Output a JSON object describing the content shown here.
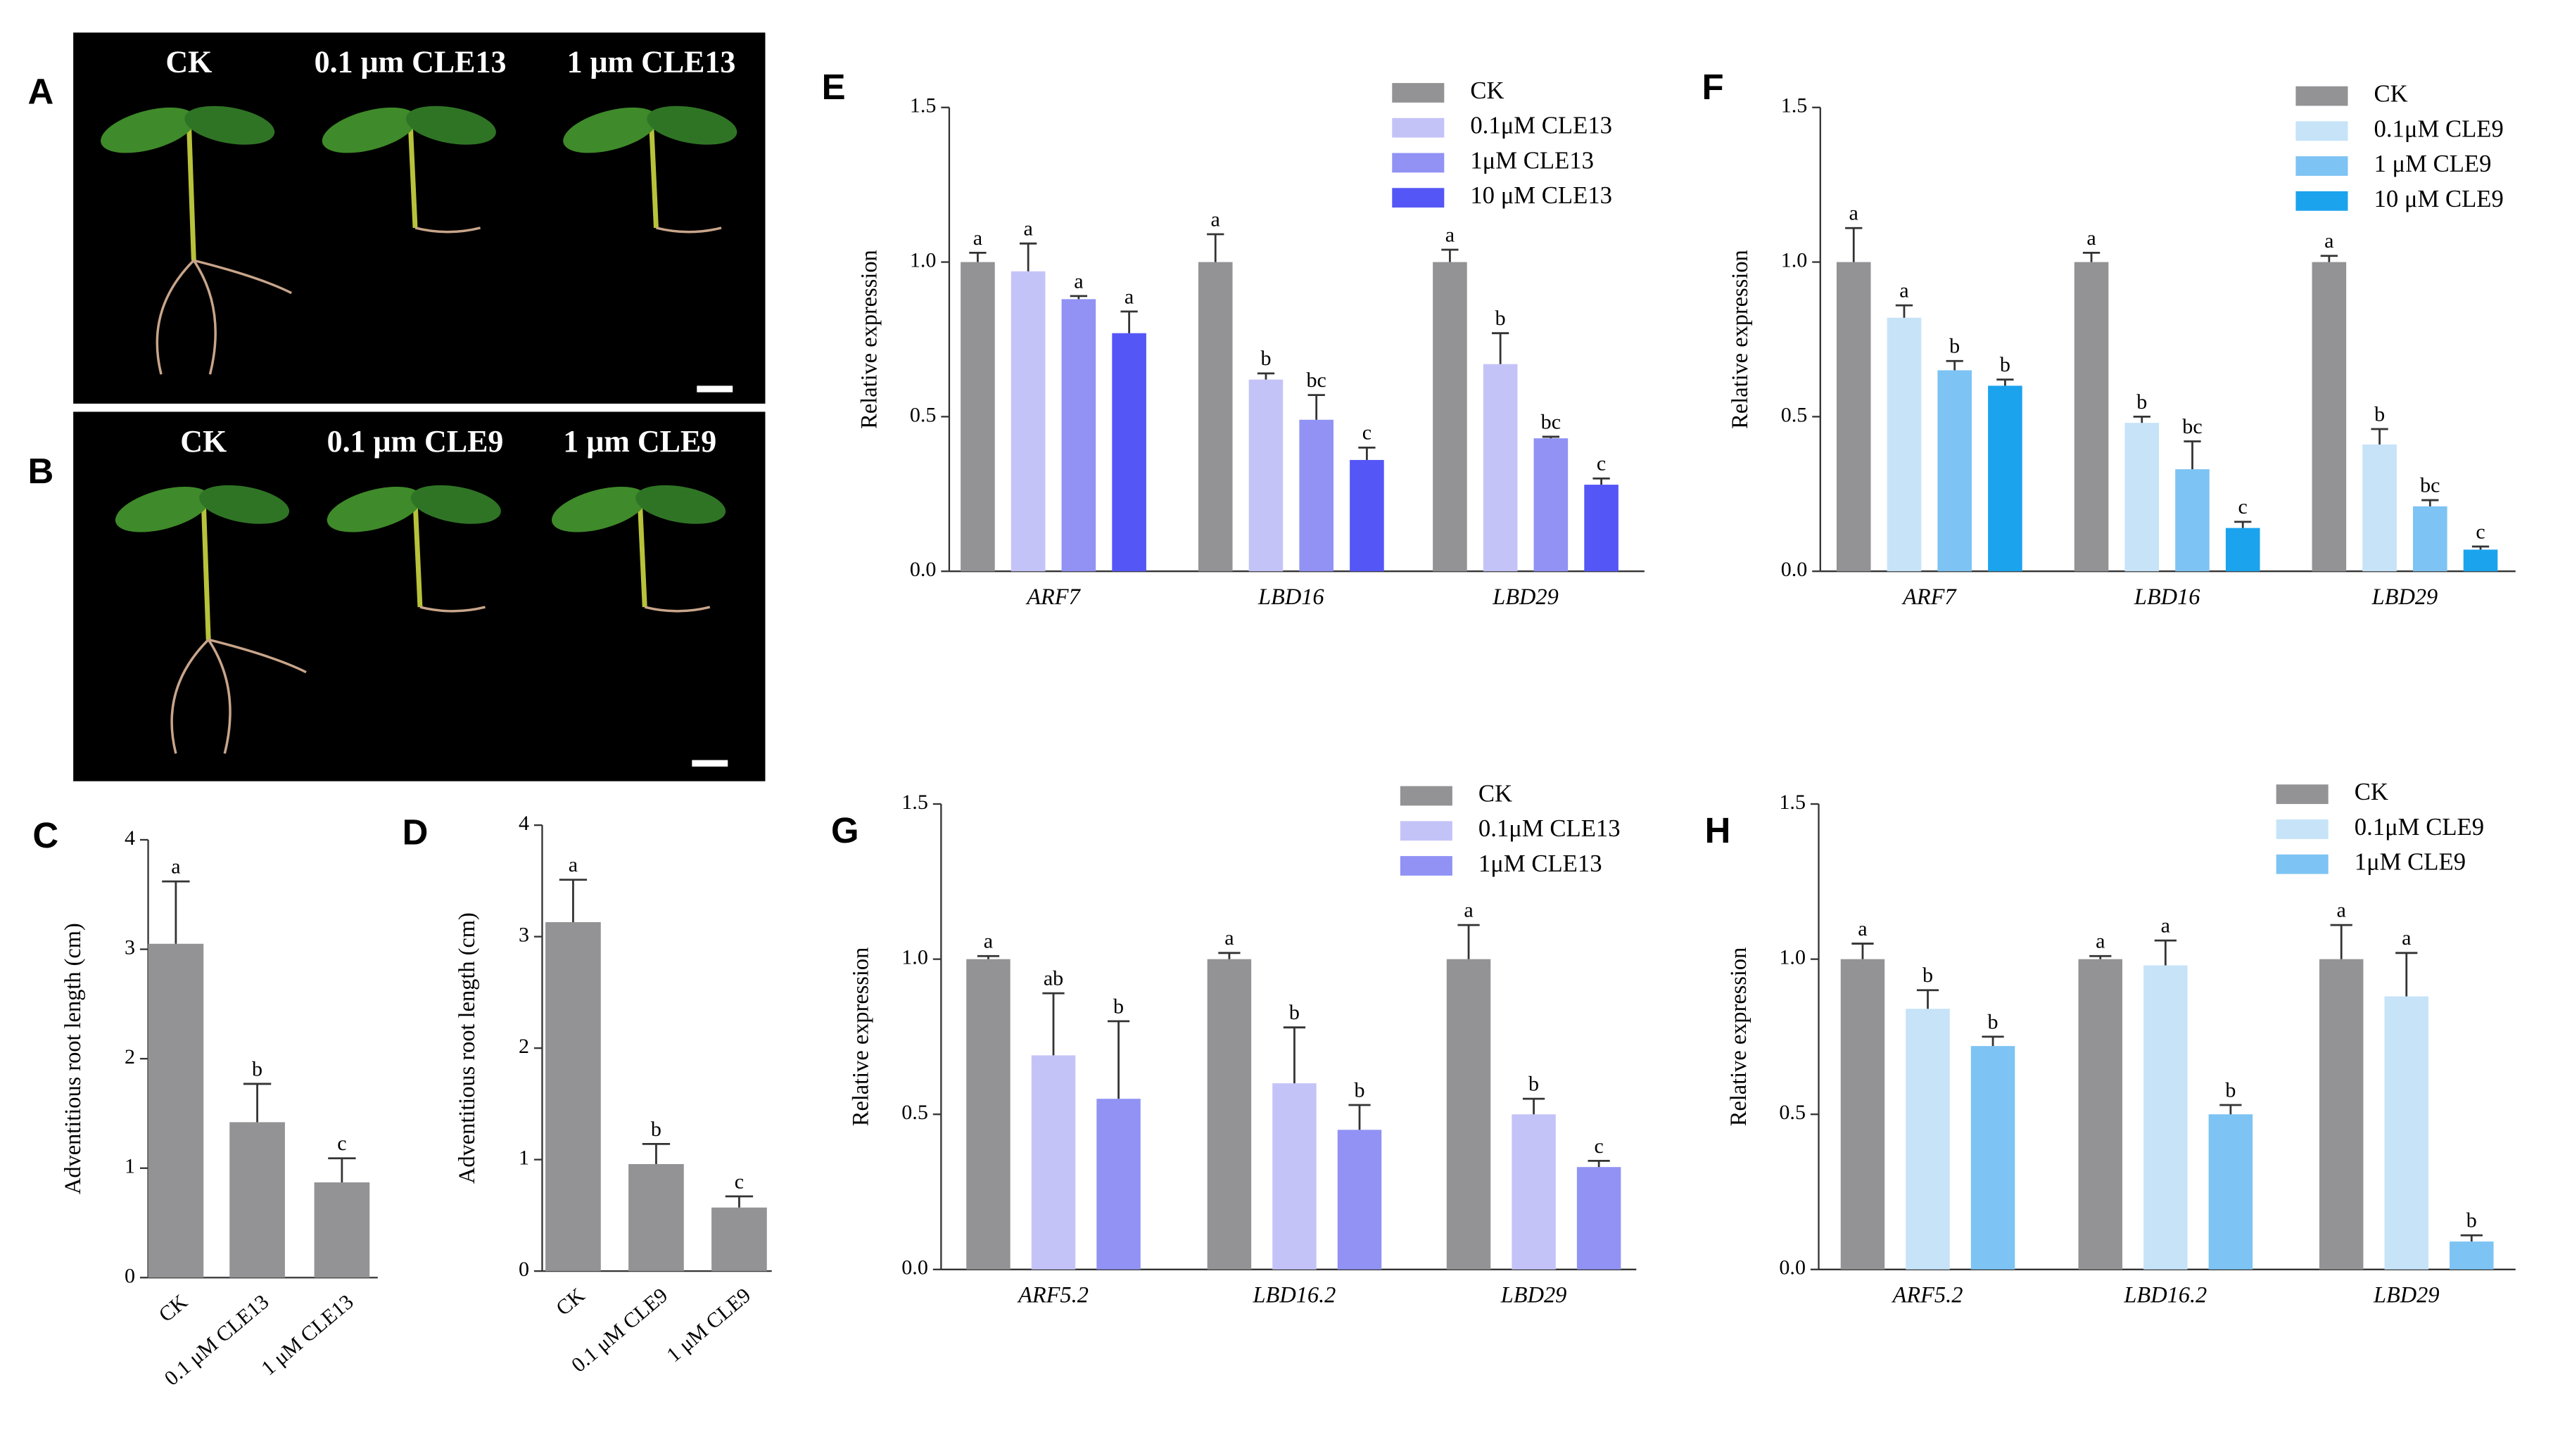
{
  "photos": [
    {
      "letter": "A",
      "labels": [
        "CK",
        "0.1 μm CLE13",
        "1 μm CLE13"
      ]
    },
    {
      "letter": "B",
      "labels": [
        "CK",
        "0.1 μm CLE9",
        "1 μm CLE9"
      ]
    }
  ],
  "chart_data": [
    {
      "type": "bar",
      "letter": "C",
      "ylabel": "Adventitious root length (cm)",
      "categories": [
        "CK",
        "0.1 μM CLE13",
        "1 μM CLE13"
      ],
      "values": [
        3.05,
        1.42,
        0.87
      ],
      "errors": [
        0.57,
        0.35,
        0.22
      ],
      "significance": [
        "a",
        "b",
        "c"
      ],
      "color": "#939396",
      "ylim": [
        0,
        4
      ],
      "yticks": [
        0,
        1,
        2,
        3,
        4
      ]
    },
    {
      "type": "bar",
      "letter": "D",
      "ylabel": "Adventitious root length (cm)",
      "categories": [
        "CK",
        "0.1 μM CLE9",
        "1 μM CLE9"
      ],
      "values": [
        3.13,
        0.96,
        0.57
      ],
      "errors": [
        0.38,
        0.18,
        0.1
      ],
      "significance": [
        "a",
        "b",
        "c"
      ],
      "color": "#939396",
      "ylim": [
        0,
        4
      ],
      "yticks": [
        0,
        1,
        2,
        3,
        4
      ]
    },
    {
      "type": "bar",
      "letter": "E",
      "ylabel": "Relative expression",
      "categories": [
        "ARF7",
        "LBD16",
        "LBD29"
      ],
      "series": [
        {
          "name": "CK",
          "color": "#939396",
          "values": [
            1.0,
            1.0,
            1.0
          ],
          "errors": [
            0.03,
            0.09,
            0.04
          ],
          "significance": [
            "a",
            "a",
            "a"
          ]
        },
        {
          "name": "0.1μM CLE13",
          "color": "#c4c3f8",
          "values": [
            0.97,
            0.62,
            0.67
          ],
          "errors": [
            0.09,
            0.02,
            0.1
          ],
          "significance": [
            "a",
            "b",
            "b"
          ]
        },
        {
          "name": "1μM CLE13",
          "color": "#9192f4",
          "values": [
            0.88,
            0.49,
            0.43
          ],
          "errors": [
            0.01,
            0.08,
            0.005
          ],
          "significance": [
            "a",
            "bc",
            "bc"
          ]
        },
        {
          "name": "10 μM CLE13",
          "color": "#5556f6",
          "values": [
            0.77,
            0.36,
            0.28
          ],
          "errors": [
            0.07,
            0.04,
            0.02
          ],
          "significance": [
            "a",
            "c",
            "c"
          ]
        }
      ],
      "ylim": [
        0,
        1.5
      ],
      "yticks": [
        {
          "value": 0,
          "label": "0.0"
        },
        {
          "value": 0.5,
          "label": "0.5"
        },
        {
          "value": 1,
          "label": "1.0"
        },
        {
          "value": 1.5,
          "label": "1.5"
        }
      ]
    },
    {
      "type": "bar",
      "letter": "F",
      "ylabel": "Relative expression",
      "categories": [
        "ARF7",
        "LBD16",
        "LBD29"
      ],
      "series": [
        {
          "name": "CK",
          "color": "#939396",
          "values": [
            1.0,
            1.0,
            1.0
          ],
          "errors": [
            0.11,
            0.03,
            0.02
          ],
          "significance": [
            "a",
            "a",
            "a"
          ]
        },
        {
          "name": "0.1μM CLE9",
          "color": "#c6e3f8",
          "values": [
            0.82,
            0.48,
            0.41
          ],
          "errors": [
            0.04,
            0.02,
            0.05
          ],
          "significance": [
            "a",
            "b",
            "b"
          ]
        },
        {
          "name": "1 μM CLE9",
          "color": "#7dc3f3",
          "values": [
            0.65,
            0.33,
            0.21
          ],
          "errors": [
            0.03,
            0.09,
            0.02
          ],
          "significance": [
            "b",
            "bc",
            "bc"
          ]
        },
        {
          "name": "10 μM CLE9",
          "color": "#1ba3ee",
          "values": [
            0.6,
            0.14,
            0.07
          ],
          "errors": [
            0.02,
            0.02,
            0.01
          ],
          "significance": [
            "b",
            "c",
            "c"
          ]
        }
      ],
      "ylim": [
        0,
        1.5
      ],
      "yticks": [
        {
          "value": 0,
          "label": "0.0"
        },
        {
          "value": 0.5,
          "label": "0.5"
        },
        {
          "value": 1,
          "label": "1.0"
        },
        {
          "value": 1.5,
          "label": "1.5"
        }
      ]
    },
    {
      "type": "bar",
      "letter": "G",
      "ylabel": "Relative expression",
      "categories": [
        "ARF5.2",
        "LBD16.2",
        "LBD29"
      ],
      "series": [
        {
          "name": "CK",
          "color": "#939396",
          "values": [
            1.0,
            1.0,
            1.0
          ],
          "errors": [
            0.01,
            0.02,
            0.11
          ],
          "significance": [
            "a",
            "a",
            "a"
          ]
        },
        {
          "name": "0.1μM CLE13",
          "color": "#c4c3f8",
          "values": [
            0.69,
            0.6,
            0.5
          ],
          "errors": [
            0.2,
            0.18,
            0.05
          ],
          "significance": [
            "ab",
            "b",
            "b"
          ]
        },
        {
          "name": "1μM CLE13",
          "color": "#9192f4",
          "values": [
            0.55,
            0.45,
            0.33
          ],
          "errors": [
            0.25,
            0.08,
            0.02
          ],
          "significance": [
            "b",
            "b",
            "c"
          ]
        }
      ],
      "ylim": [
        0,
        1.5
      ],
      "yticks": [
        {
          "value": 0,
          "label": "0.0"
        },
        {
          "value": 0.5,
          "label": "0.5"
        },
        {
          "value": 1,
          "label": "1.0"
        },
        {
          "value": 1.5,
          "label": "1.5"
        }
      ]
    },
    {
      "type": "bar",
      "letter": "H",
      "ylabel": "Relative expression",
      "categories": [
        "ARF5.2",
        "LBD16.2",
        "LBD29"
      ],
      "series": [
        {
          "name": "CK",
          "color": "#939396",
          "values": [
            1.0,
            1.0,
            1.0
          ],
          "errors": [
            0.05,
            0.01,
            0.11
          ],
          "significance": [
            "a",
            "a",
            "a"
          ]
        },
        {
          "name": "0.1μM CLE9",
          "color": "#c6e3f8",
          "values": [
            0.84,
            0.98,
            0.88
          ],
          "errors": [
            0.06,
            0.08,
            0.14
          ],
          "significance": [
            "b",
            "a",
            "a"
          ]
        },
        {
          "name": "1μM CLE9",
          "color": "#7dc3f3",
          "values": [
            0.72,
            0.5,
            0.09
          ],
          "errors": [
            0.03,
            0.03,
            0.02
          ],
          "significance": [
            "b",
            "b",
            "b"
          ]
        }
      ],
      "ylim": [
        0,
        1.5
      ],
      "yticks": [
        {
          "value": 0,
          "label": "0.0"
        },
        {
          "value": 0.5,
          "label": "0.5"
        },
        {
          "value": 1,
          "label": "1.0"
        },
        {
          "value": 1.5,
          "label": "1.5"
        }
      ]
    }
  ]
}
